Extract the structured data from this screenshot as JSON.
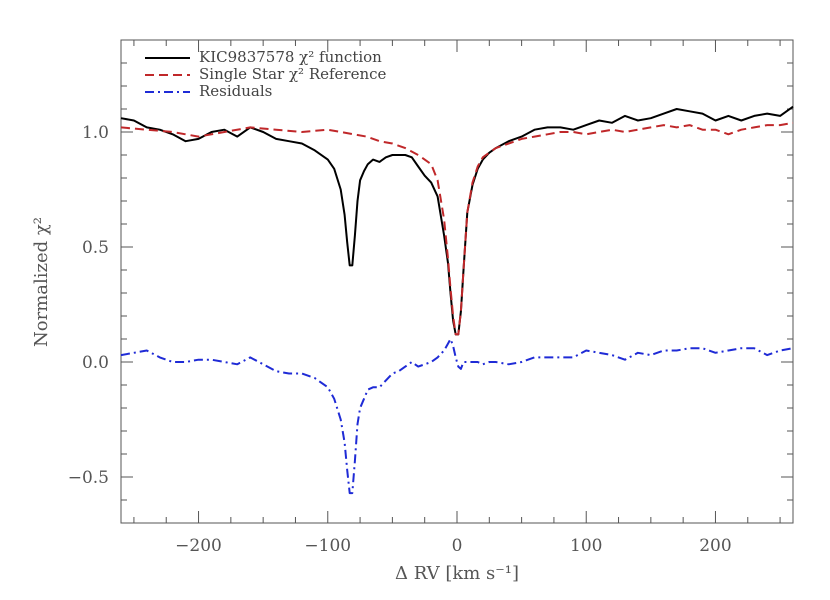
{
  "chart_data": {
    "type": "line",
    "xlabel": "Δ RV [km s⁻¹]",
    "ylabel": "Normalized χ²",
    "xlim": [
      -260,
      260
    ],
    "ylim": [
      -0.7,
      1.4
    ],
    "xticks": [
      -200,
      -100,
      0,
      100,
      200
    ],
    "xtick_labels": [
      "−200",
      "−100",
      "0",
      "100",
      "200"
    ],
    "yticks": [
      -0.5,
      0.0,
      0.5,
      1.0
    ],
    "ytick_labels": [
      "−0.5",
      "0.0",
      "0.5",
      "1.0"
    ],
    "grid": false,
    "legend_position": "top-left",
    "series": [
      {
        "name": "KIC9837578 χ² function",
        "color": "#000000",
        "style": "solid",
        "x": [
          -260,
          -250,
          -240,
          -230,
          -220,
          -210,
          -200,
          -190,
          -180,
          -170,
          -160,
          -150,
          -140,
          -130,
          -120,
          -110,
          -100,
          -95,
          -90,
          -87,
          -85,
          -83,
          -81,
          -79,
          -77,
          -75,
          -72,
          -69,
          -65,
          -60,
          -55,
          -50,
          -45,
          -40,
          -35,
          -30,
          -25,
          -20,
          -15,
          -10,
          -7,
          -5,
          -3,
          -1,
          1,
          3,
          5,
          8,
          12,
          16,
          20,
          25,
          30,
          40,
          50,
          60,
          70,
          80,
          90,
          100,
          110,
          120,
          130,
          140,
          150,
          160,
          170,
          180,
          190,
          200,
          210,
          220,
          230,
          240,
          250,
          260
        ],
        "y": [
          1.06,
          1.05,
          1.02,
          1.01,
          0.99,
          0.96,
          0.97,
          1.0,
          1.01,
          0.98,
          1.02,
          1.0,
          0.97,
          0.96,
          0.95,
          0.92,
          0.88,
          0.84,
          0.75,
          0.64,
          0.52,
          0.42,
          0.42,
          0.55,
          0.7,
          0.79,
          0.83,
          0.86,
          0.88,
          0.87,
          0.89,
          0.9,
          0.9,
          0.9,
          0.89,
          0.85,
          0.81,
          0.78,
          0.72,
          0.55,
          0.43,
          0.3,
          0.18,
          0.12,
          0.12,
          0.22,
          0.4,
          0.65,
          0.77,
          0.84,
          0.88,
          0.91,
          0.93,
          0.96,
          0.98,
          1.01,
          1.02,
          1.02,
          1.01,
          1.03,
          1.05,
          1.04,
          1.07,
          1.05,
          1.06,
          1.08,
          1.1,
          1.09,
          1.08,
          1.05,
          1.07,
          1.05,
          1.07,
          1.08,
          1.07,
          1.11
        ]
      },
      {
        "name": "Single Star χ² Reference",
        "color": "#c0282a",
        "style": "dashed",
        "x": [
          -260,
          -240,
          -220,
          -200,
          -180,
          -160,
          -140,
          -120,
          -100,
          -90,
          -80,
          -70,
          -60,
          -50,
          -40,
          -30,
          -20,
          -15,
          -10,
          -7,
          -5,
          -3,
          -1,
          1,
          3,
          5,
          8,
          12,
          16,
          20,
          25,
          30,
          40,
          50,
          60,
          70,
          80,
          90,
          100,
          110,
          120,
          130,
          140,
          150,
          160,
          170,
          180,
          190,
          200,
          210,
          220,
          230,
          240,
          250,
          260
        ],
        "y": [
          1.02,
          1.01,
          1.0,
          0.98,
          1.0,
          1.02,
          1.01,
          1.0,
          1.01,
          1.0,
          0.99,
          0.98,
          0.96,
          0.95,
          0.93,
          0.9,
          0.86,
          0.79,
          0.62,
          0.45,
          0.32,
          0.2,
          0.12,
          0.12,
          0.22,
          0.4,
          0.65,
          0.78,
          0.85,
          0.89,
          0.91,
          0.93,
          0.95,
          0.97,
          0.98,
          0.99,
          1.0,
          1.0,
          0.99,
          1.0,
          1.01,
          1.0,
          1.01,
          1.02,
          1.03,
          1.02,
          1.03,
          1.01,
          1.01,
          0.99,
          1.01,
          1.02,
          1.03,
          1.03,
          1.04
        ]
      },
      {
        "name": "Residuals",
        "color": "#1f2bd6",
        "style": "dash-dot",
        "x": [
          -260,
          -250,
          -240,
          -230,
          -220,
          -210,
          -200,
          -190,
          -180,
          -170,
          -160,
          -150,
          -140,
          -130,
          -120,
          -110,
          -100,
          -95,
          -90,
          -87,
          -85,
          -83,
          -81,
          -79,
          -77,
          -75,
          -72,
          -69,
          -65,
          -60,
          -55,
          -50,
          -45,
          -40,
          -35,
          -30,
          -25,
          -20,
          -15,
          -10,
          -7,
          -5,
          -3,
          -1,
          1,
          3,
          5,
          8,
          12,
          16,
          20,
          25,
          30,
          40,
          50,
          60,
          70,
          80,
          90,
          100,
          110,
          120,
          130,
          140,
          150,
          160,
          170,
          180,
          190,
          200,
          210,
          220,
          230,
          240,
          250,
          260
        ],
        "y": [
          0.03,
          0.04,
          0.05,
          0.02,
          0.0,
          0.0,
          0.01,
          0.01,
          0.0,
          -0.01,
          0.02,
          -0.01,
          -0.04,
          -0.05,
          -0.05,
          -0.07,
          -0.11,
          -0.16,
          -0.25,
          -0.35,
          -0.47,
          -0.57,
          -0.57,
          -0.43,
          -0.27,
          -0.2,
          -0.16,
          -0.12,
          -0.11,
          -0.11,
          -0.08,
          -0.05,
          -0.04,
          -0.02,
          0.0,
          -0.02,
          -0.01,
          0.0,
          0.02,
          0.05,
          0.08,
          0.1,
          0.07,
          0.02,
          -0.02,
          -0.03,
          0.0,
          0.0,
          0.0,
          0.0,
          -0.01,
          0.0,
          0.0,
          -0.01,
          0.0,
          0.02,
          0.02,
          0.02,
          0.02,
          0.05,
          0.04,
          0.03,
          0.01,
          0.04,
          0.03,
          0.05,
          0.05,
          0.06,
          0.06,
          0.04,
          0.05,
          0.06,
          0.06,
          0.03,
          0.05,
          0.06
        ]
      }
    ]
  },
  "legend": {
    "entries": [
      {
        "text": "KIC9837578 χ² function",
        "color": "#000000",
        "style": "solid"
      },
      {
        "text": "Single Star χ² Reference",
        "color": "#c0282a",
        "style": "dashed"
      },
      {
        "text": "Residuals",
        "color": "#1f2bd6",
        "style": "dash-dot"
      }
    ]
  }
}
